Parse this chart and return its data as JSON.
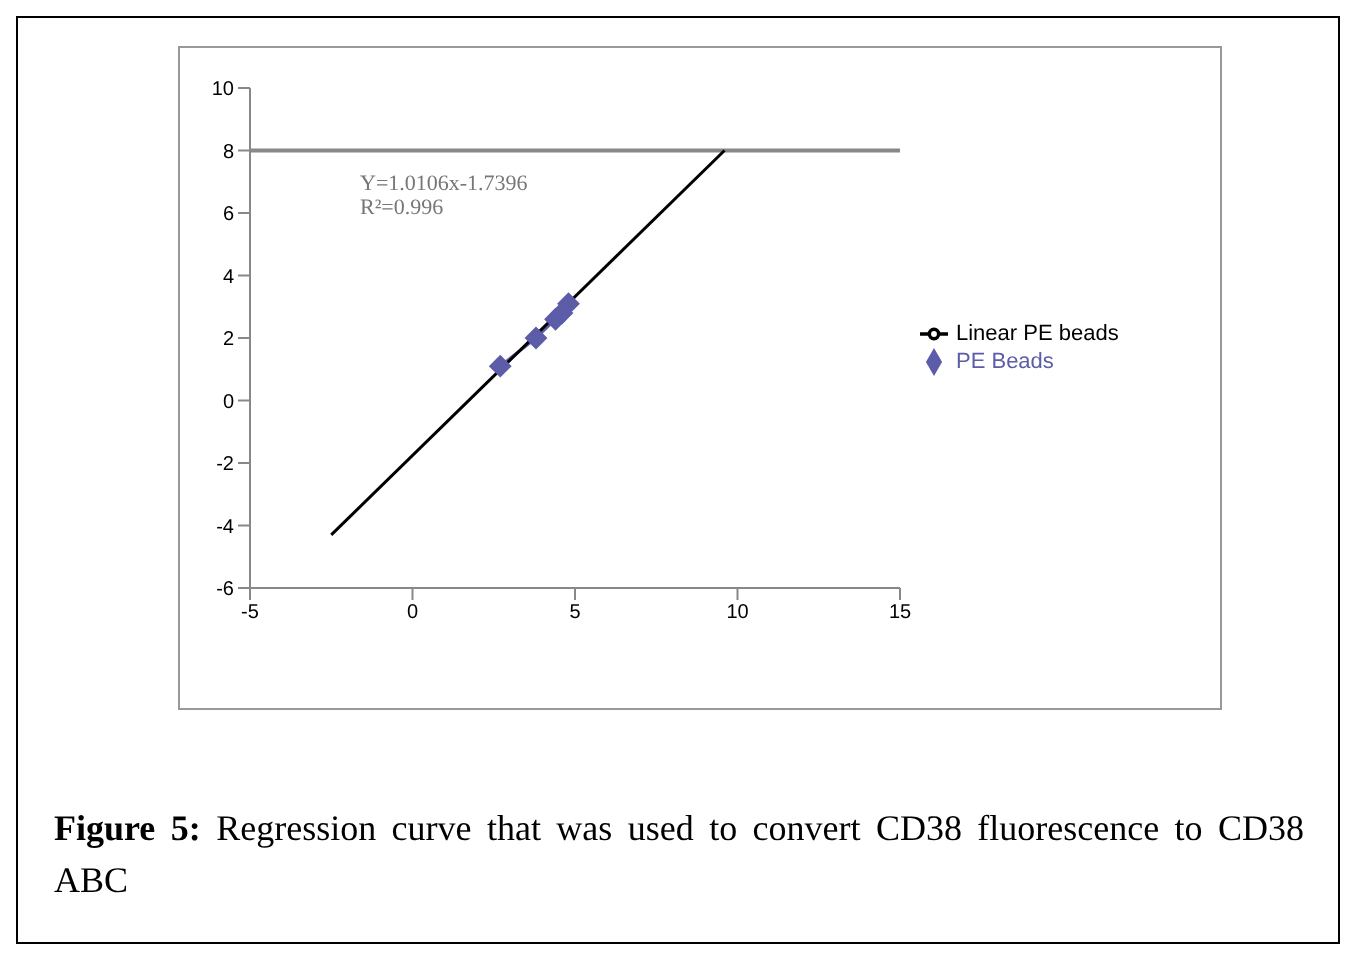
{
  "chart_data": {
    "type": "line",
    "annotations": [
      "Y=1.0106x-1.7396 R²=0.996",
      "Figure 5:",
      "Regression curve that was used to convert CD38 fluorescence to CD38 ABC"
    ],
    "series": [
      {
        "name": "PE Beads",
        "color": "#5c5ca8",
        "marker": "diamond",
        "x": [
          2.7,
          3.8,
          4.4,
          4.6,
          4.8
        ],
        "values": [
          1.1,
          2.0,
          2.6,
          2.8,
          3.1
        ]
      },
      {
        "name": "Linear PE beads",
        "color": "#000000",
        "marker": "none",
        "x": [
          -2.5,
          9.6
        ],
        "values": [
          -4.3,
          8.0
        ]
      }
    ],
    "xlim": [
      -5,
      15
    ],
    "xticks": [
      -5,
      0,
      5,
      10,
      15
    ],
    "ylim": [
      -6,
      10
    ],
    "yticks": [
      -6,
      -4,
      -2,
      0,
      2,
      4,
      6,
      8,
      10
    ],
    "ref_lines": [
      {
        "axis": "y",
        "value": 8,
        "color": "#888888"
      }
    ],
    "grid": false,
    "legend": "right"
  }
}
